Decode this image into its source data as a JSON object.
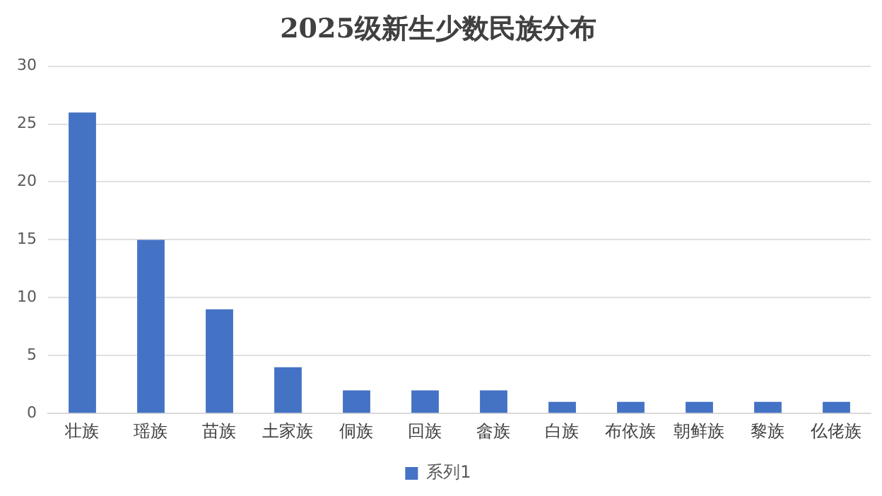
{
  "chart_data": {
    "type": "bar",
    "title": "2025级新生少数民族分布",
    "categories": [
      "壮族",
      "瑶族",
      "苗族",
      "土家族",
      "侗族",
      "回族",
      "畲族",
      "白族",
      "布依族",
      "朝鲜族",
      "黎族",
      "仫佬族"
    ],
    "series": [
      {
        "name": "系列1",
        "color": "#4472c4",
        "values": [
          26,
          15,
          9,
          4,
          2,
          2,
          2,
          1,
          1,
          1,
          1,
          1
        ]
      }
    ],
    "ylim": [
      0,
      30
    ],
    "yticks": [
      0,
      5,
      10,
      15,
      20,
      25,
      30
    ],
    "grid": "y",
    "legend": "bottom"
  }
}
